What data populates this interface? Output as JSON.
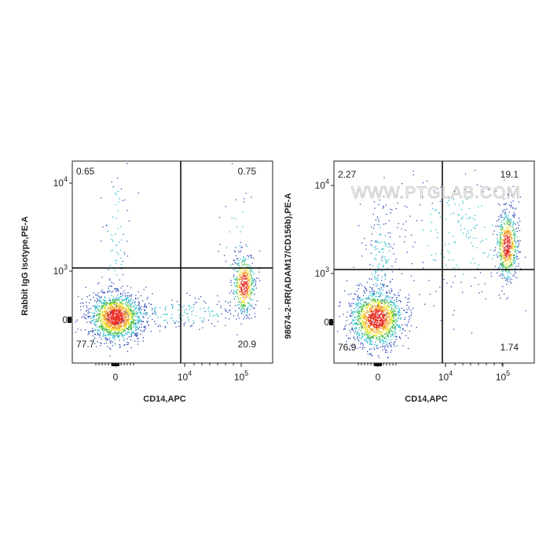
{
  "panels": [
    {
      "y_label": "Rabbit IgG Isotype,PE-A",
      "x_label": "CD14,APC",
      "quadrants": {
        "upper_left": "0.65",
        "upper_right": "0.75",
        "lower_left": "77.7",
        "lower_right": "20.9"
      },
      "yticks": [
        {
          "base": "10",
          "exp": "4"
        },
        {
          "base": "10",
          "exp": "3"
        },
        {
          "base": "0"
        }
      ],
      "xticks": [
        {
          "base": "0"
        },
        {
          "base": "10",
          "exp": "4"
        },
        {
          "base": "10",
          "exp": "5"
        }
      ]
    },
    {
      "y_label": "98674-2-RR(ADAM17/CD156b),PE-A",
      "x_label": "CD14,APC",
      "quadrants": {
        "upper_left": "2.27",
        "upper_right": "19.1",
        "lower_left": "76.9",
        "lower_right": "1.74"
      },
      "yticks": [
        {
          "base": "10",
          "exp": "4"
        },
        {
          "base": "10",
          "exp": "3"
        },
        {
          "base": "0"
        }
      ],
      "xticks": [
        {
          "base": "0"
        },
        {
          "base": "10",
          "exp": "4"
        },
        {
          "base": "10",
          "exp": "5"
        }
      ],
      "watermark": "WWW.PTGLAB.COM"
    }
  ]
}
